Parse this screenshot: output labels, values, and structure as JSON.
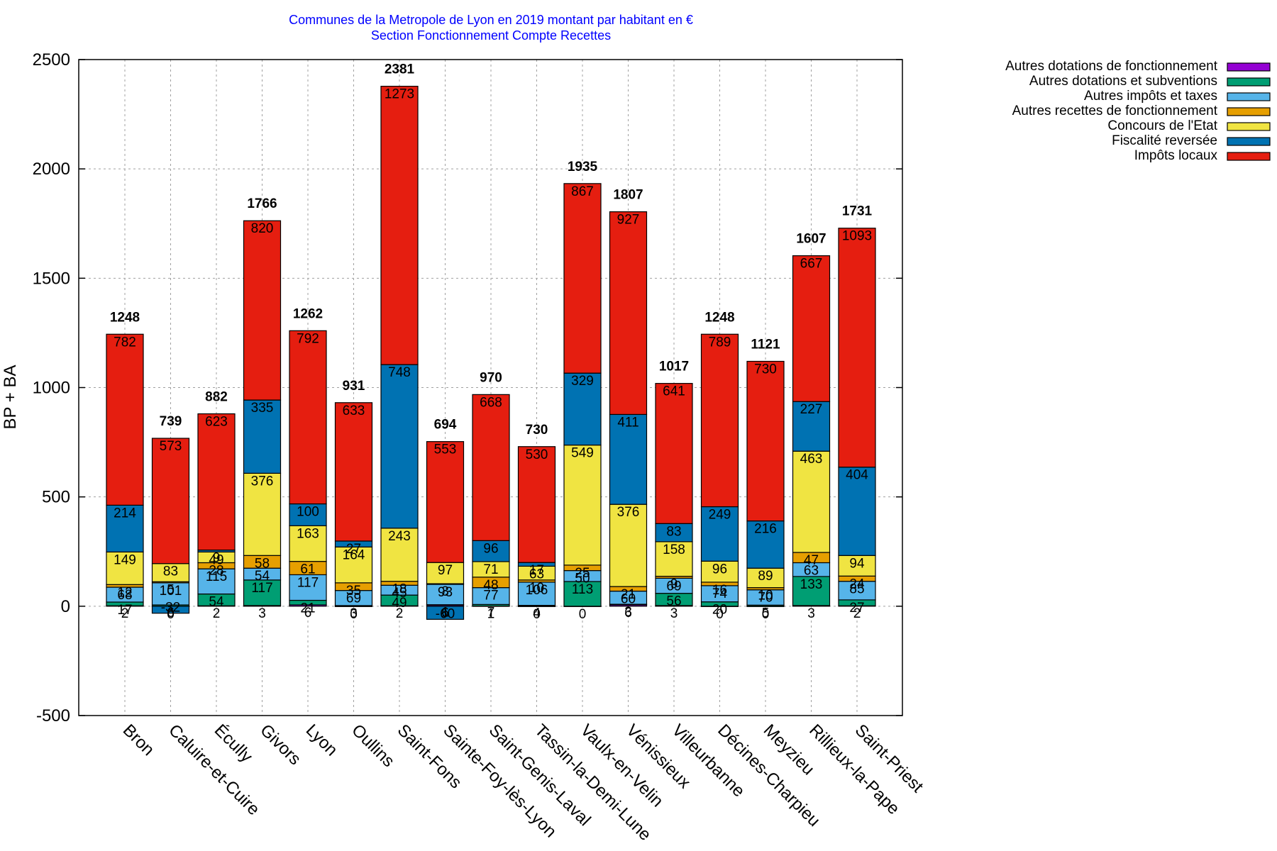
{
  "chart_data": {
    "type": "bar",
    "stacked": true,
    "title": "Communes de la Metropole de Lyon en 2019 montant par habitant en €",
    "subtitle": "Section Fonctionnement Compte Recettes",
    "xlabel": "",
    "ylabel": "BP + BA",
    "ylim": [
      -500,
      2500
    ],
    "yticks": [
      -500,
      0,
      500,
      1000,
      1500,
      2000,
      2500
    ],
    "grid": true,
    "legend_position": "top-right-outside",
    "categories": [
      "Bron",
      "Caluire-et-Cuire",
      "Écully",
      "Givors",
      "Lyon",
      "Oullins",
      "Saint-Fons",
      "Sainte-Foy-lès-Lyon",
      "Saint-Genis-Laval",
      "Tassin-la-Demi-Lune",
      "Vaulx-en-Velin",
      "Vénissieux",
      "Villeurbanne",
      "Décines-Charpieu",
      "Meyzieu",
      "Rillieux-la-Pape",
      "Saint-Priest"
    ],
    "totals": [
      1248,
      739,
      882,
      1766,
      1262,
      931,
      2381,
      694,
      970,
      730,
      1935,
      1807,
      1017,
      1248,
      1121,
      1607,
      1731
    ],
    "series": [
      {
        "name": "Autres dotations de fonctionnement",
        "color": "#9400d3",
        "values": [
          2,
          0,
          2,
          3,
          6,
          0,
          2,
          6,
          1,
          0,
          0,
          6,
          3,
          0,
          0,
          3,
          2
        ]
      },
      {
        "name": "Autres dotations et subventions",
        "color": "#009e73",
        "values": [
          17,
          6,
          54,
          117,
          21,
          3,
          49,
          1,
          7,
          4,
          113,
          3,
          56,
          20,
          5,
          133,
          27
        ]
      },
      {
        "name": "Autres impôts et taxes",
        "color": "#56b4e9",
        "values": [
          68,
          101,
          115,
          54,
          117,
          69,
          45,
          93,
          77,
          106,
          50,
          60,
          69,
          74,
          70,
          63,
          85
        ]
      },
      {
        "name": "Autres recettes de fonctionnement",
        "color": "#e69f00",
        "values": [
          12,
          5,
          28,
          58,
          61,
          35,
          18,
          3,
          48,
          10,
          25,
          21,
          9,
          16,
          10,
          47,
          24
        ]
      },
      {
        "name": "Concours de l'Etat",
        "color": "#f0e442",
        "values": [
          149,
          83,
          49,
          376,
          163,
          164,
          243,
          97,
          71,
          63,
          549,
          376,
          158,
          96,
          89,
          463,
          94
        ]
      },
      {
        "name": "Fiscalité reversée",
        "color": "#0072b2",
        "values": [
          214,
          -32,
          9,
          335,
          100,
          27,
          748,
          -60,
          96,
          17,
          329,
          411,
          83,
          249,
          216,
          227,
          404
        ]
      },
      {
        "name": "Impôts locaux",
        "color": "#e51e10",
        "values": [
          782,
          573,
          623,
          820,
          792,
          633,
          1273,
          553,
          668,
          530,
          867,
          927,
          641,
          789,
          730,
          667,
          1093
        ]
      }
    ]
  }
}
